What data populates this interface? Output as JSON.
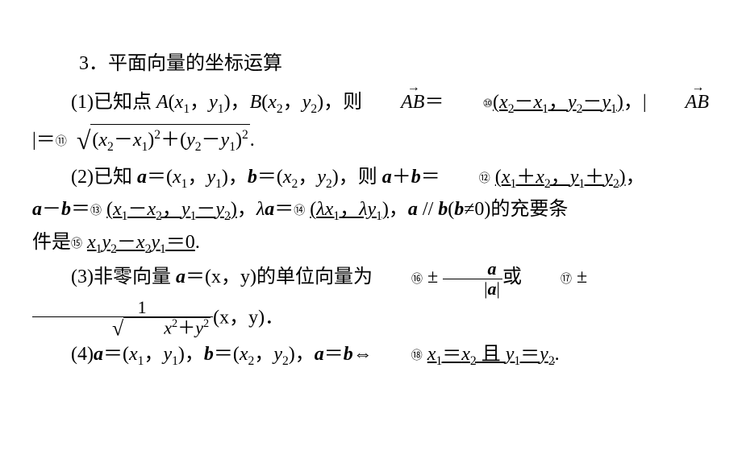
{
  "heading": "3．平面向量的坐标运算",
  "item1": {
    "lead": "(1)已知点 ",
    "Apt": "A",
    "Aco": "(x",
    "x1s": "1",
    "sep": "，",
    "yco": "y",
    "y1s": "1",
    "close": ")",
    "Bpt": "B",
    "then": "，则",
    "ABvec_inner": "AB",
    "eq": "＝",
    "circ10": "⑩",
    "ans10a": "(x",
    "ans10b": "－x",
    "ans10c": "，y",
    "ans10d": "－y",
    "ans10e": ")",
    "comma": "，|",
    "mag_eq": "|＝",
    "circ11": "⑪",
    "sq_in_a": "(x",
    "sq_in_b": "－x",
    "sq_in_c": ")",
    "plus": "＋(y",
    "sq_in_d": "－y",
    "sq_in_e": ")",
    "period": "."
  },
  "item2": {
    "lead": "(2)已知 ",
    "a": "a",
    "eqco": "＝(x",
    "b": "b",
    "then": "，则 ",
    "aplusb_a": "a",
    "aplusb_p": "＋",
    "aplusb_b": "b",
    "circ12": "⑫",
    "ans12a": "(x",
    "ans12b": "＋x",
    "ans12c": "，y",
    "ans12d": "＋y",
    "ans12e": ")",
    "aminusb_m": "－",
    "circ13": "⑬",
    "ans13a": "(x",
    "ans13b": "－x",
    "ans13c": "，y",
    "ans13d": "－y",
    "ans13e": ")",
    "lambda": "λ",
    "circ14": "⑭",
    "ans14a": "(λx",
    "ans14b": "，λy",
    "ans14c": ")",
    "par": " // ",
    "par_a": "a",
    "par_b": "b",
    "bneq0": "≠0)的充要条",
    "cond2": "件是",
    "circ15": "⑮",
    "ans15a": "x",
    "ans15b": "y",
    "ans15c": "－x",
    "ans15d": "y",
    "ans15e": "＝0",
    "period": "."
  },
  "item3": {
    "lead": "(3)非零向量 ",
    "a": "a",
    "eqco": "＝(x，y)的单位向量为",
    "circ16": "⑯",
    "pm": " ± ",
    "frac1_num": "a",
    "frac1_den_l": "|",
    "frac1_den_a": "a",
    "frac1_den_r": "|",
    "or": "或",
    "circ17": "⑰",
    "frac2_num": "1",
    "sq_in": "x",
    "sq_in2": "＋y",
    "trail": "(x，y)．"
  },
  "item4": {
    "lead": "(4)",
    "a": "a",
    "eqco": "＝(x",
    "b": "b",
    "iff": "⇔",
    "circ18": "⑱",
    "ans_a": "x",
    "ans_eq": "＝x",
    "and": " 且 ",
    "ans_b": "y",
    "ans_eq2": "＝y",
    "period": "."
  },
  "s": {
    "1": "1",
    "2": "2"
  }
}
